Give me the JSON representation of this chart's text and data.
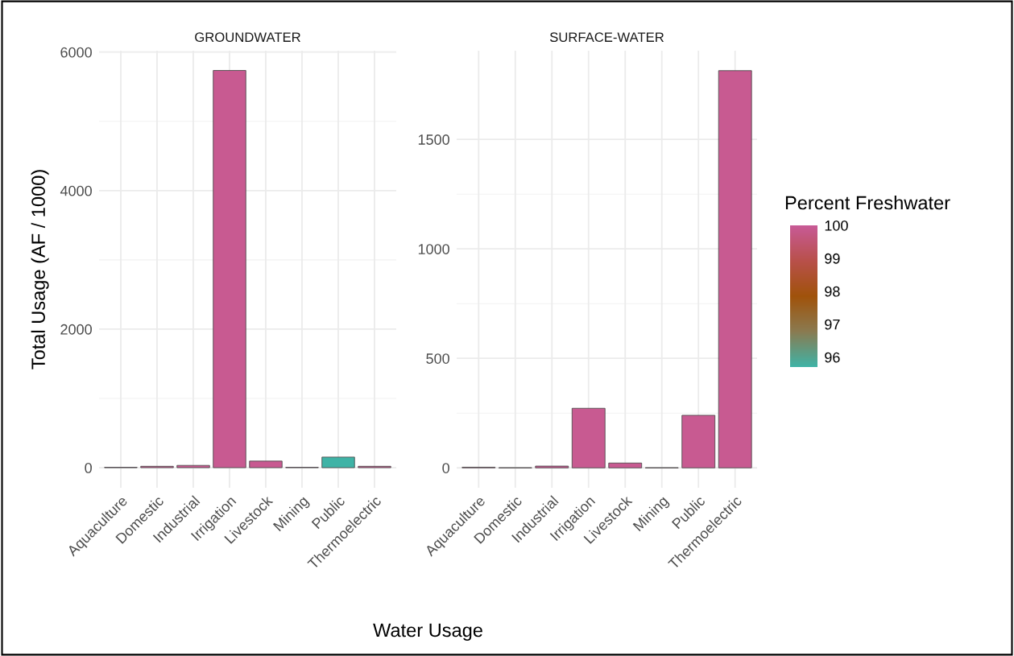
{
  "chart_data": [
    {
      "type": "bar",
      "title": "GROUNDWATER",
      "xlabel": "Water Usage",
      "ylabel": "Total Usage (AF / 1000)",
      "categories": [
        "Aquaculture",
        "Domestic",
        "Industrial",
        "Irrigation",
        "Livestock",
        "Mining",
        "Public",
        "Thermoelectric"
      ],
      "values": [
        5,
        20,
        33,
        5735,
        95,
        5,
        153,
        20
      ],
      "colors": [
        "#c85a91",
        "#c85a91",
        "#c85a91",
        "#c85a91",
        "#c85a91",
        "#c85a91",
        "#3fb3a6",
        "#c85a91"
      ],
      "ylim": [
        -290,
        6020
      ],
      "yticks": [
        0,
        2000,
        4000,
        6000
      ],
      "grid": true,
      "legend": false
    },
    {
      "type": "bar",
      "title": "SURFACE-WATER",
      "categories": [
        "Aquaculture",
        "Domestic",
        "Industrial",
        "Irrigation",
        "Livestock",
        "Mining",
        "Public",
        "Thermoelectric"
      ],
      "values": [
        3,
        0.5,
        8,
        272,
        22,
        0.5,
        240,
        1814
      ],
      "colors": [
        "#c85a91",
        "#c85a91",
        "#c85a91",
        "#c85a91",
        "#c85a91",
        "#c85a91",
        "#c85a91",
        "#c85a91"
      ],
      "ylim": [
        -91,
        1905
      ],
      "yticks": [
        0,
        500,
        1000,
        1500
      ],
      "grid": true,
      "legend": false,
      "clabel": "Percent Freshwater",
      "clim": [
        95.7,
        100
      ],
      "cticks": [
        96,
        97,
        98,
        99,
        100
      ]
    }
  ]
}
